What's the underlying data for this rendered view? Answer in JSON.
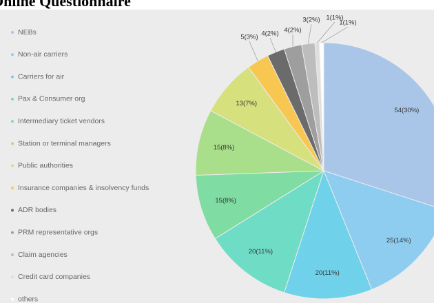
{
  "chart_data": {
    "type": "pie",
    "title": "Online Questionnaire",
    "categories": [
      "NEBs",
      "Non-air carriers",
      "Carriers for air",
      "Pax & Consumer org",
      "Intermediary ticket vendors",
      "Station or terminal managers",
      "Public authorities",
      "Insurance companies & insolvency funds",
      "ADR bodies",
      "PRM representative orgs",
      "Claim agencies",
      "Credit card companies",
      "others"
    ],
    "values": [
      54,
      25,
      20,
      20,
      15,
      15,
      13,
      5,
      4,
      4,
      3,
      1,
      1
    ],
    "value_labels": [
      "54(30%)",
      "25(14%)",
      "20(11%)",
      "20(11%)",
      "15(8%)",
      "15(8%)",
      "13(7%)",
      "5(3%)",
      "4(2%)",
      "4(2%)",
      "3(2%)",
      "1(1%)",
      "1(1%)"
    ],
    "colors": [
      "#a9c6e8",
      "#8fcdf0",
      "#6fd2ea",
      "#6fdcc6",
      "#7fdca2",
      "#a9df8a",
      "#d6e07c",
      "#f8c752",
      "#6b6b6b",
      "#9e9e9e",
      "#bdbdbd",
      "#dedede",
      "#ffffff"
    ]
  }
}
